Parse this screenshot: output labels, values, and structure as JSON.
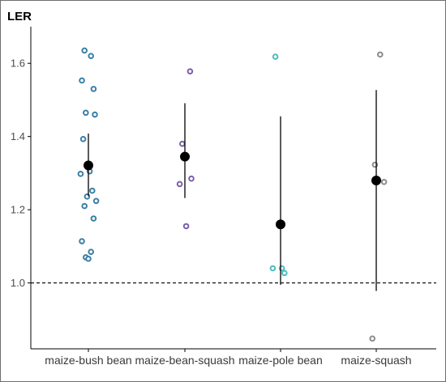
{
  "chart_data": {
    "type": "scatter",
    "ylabel": "LER",
    "xlabel": "",
    "ylim": [
      0.82,
      1.7
    ],
    "yticks": [
      1.0,
      1.2,
      1.4,
      1.6
    ],
    "ytick_labels": [
      "1.0",
      "1.2",
      "1.4",
      "1.6"
    ],
    "reference_line": {
      "y": 1.0,
      "style": "dashed"
    },
    "grid": false,
    "categories": [
      "maize-bush bean",
      "maize-bean-squash",
      "maize-pole bean",
      "maize-squash"
    ],
    "series": [
      {
        "category": "maize-bush bean",
        "color": "#3a7fa6",
        "points": [
          1.635,
          1.62,
          1.553,
          1.53,
          1.465,
          1.46,
          1.393,
          1.305,
          1.298,
          1.252,
          1.236,
          1.224,
          1.21,
          1.176,
          1.114,
          1.085,
          1.07,
          1.066
        ],
        "mean": 1.321,
        "ci": [
          1.237,
          1.408
        ]
      },
      {
        "category": "maize-bean-squash",
        "color": "#7b5ea8",
        "points": [
          1.578,
          1.38,
          1.285,
          1.27,
          1.155
        ],
        "mean": 1.345,
        "ci": [
          1.232,
          1.491
        ]
      },
      {
        "category": "maize-pole bean",
        "color": "#4cbcbc",
        "points": [
          1.618,
          1.04,
          1.04,
          1.027
        ],
        "mean": 1.16,
        "ci": [
          0.995,
          1.455
        ]
      },
      {
        "category": "maize-squash",
        "color": "#8c8c8c",
        "points": [
          1.624,
          1.323,
          1.276,
          0.848
        ],
        "mean": 1.28,
        "ci": [
          0.978,
          1.527
        ]
      }
    ]
  }
}
